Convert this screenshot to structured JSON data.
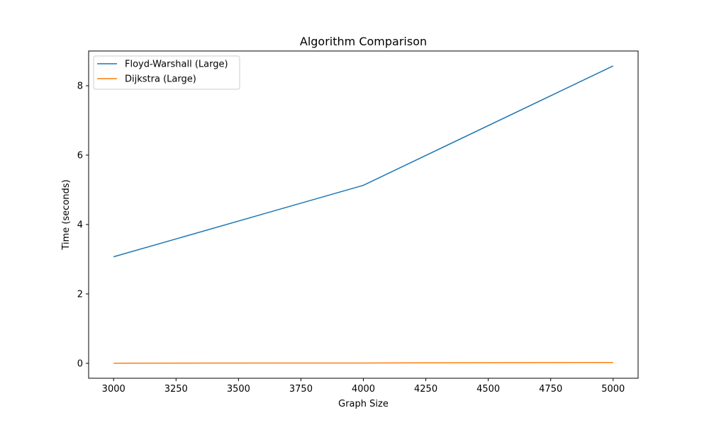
{
  "chart_data": {
    "type": "line",
    "title": "Algorithm Comparison",
    "xlabel": "Graph Size",
    "ylabel": "Time (seconds)",
    "x": [
      3000,
      4000,
      5000
    ],
    "series": [
      {
        "name": "Floyd-Warshall (Large)",
        "color": "#1f77b4",
        "values": [
          3.07,
          5.13,
          8.57
        ]
      },
      {
        "name": "Dijkstra (Large)",
        "color": "#ff7f0e",
        "values": [
          0.005,
          0.01,
          0.025
        ]
      }
    ],
    "xlim": [
      2900,
      5100
    ],
    "ylim": [
      -0.43,
      9.0
    ],
    "xticks": [
      3000,
      3250,
      3500,
      3750,
      4000,
      4250,
      4500,
      4750,
      5000
    ],
    "yticks": [
      0,
      2,
      4,
      6,
      8
    ],
    "grid": false,
    "legend_position": "top-left"
  }
}
